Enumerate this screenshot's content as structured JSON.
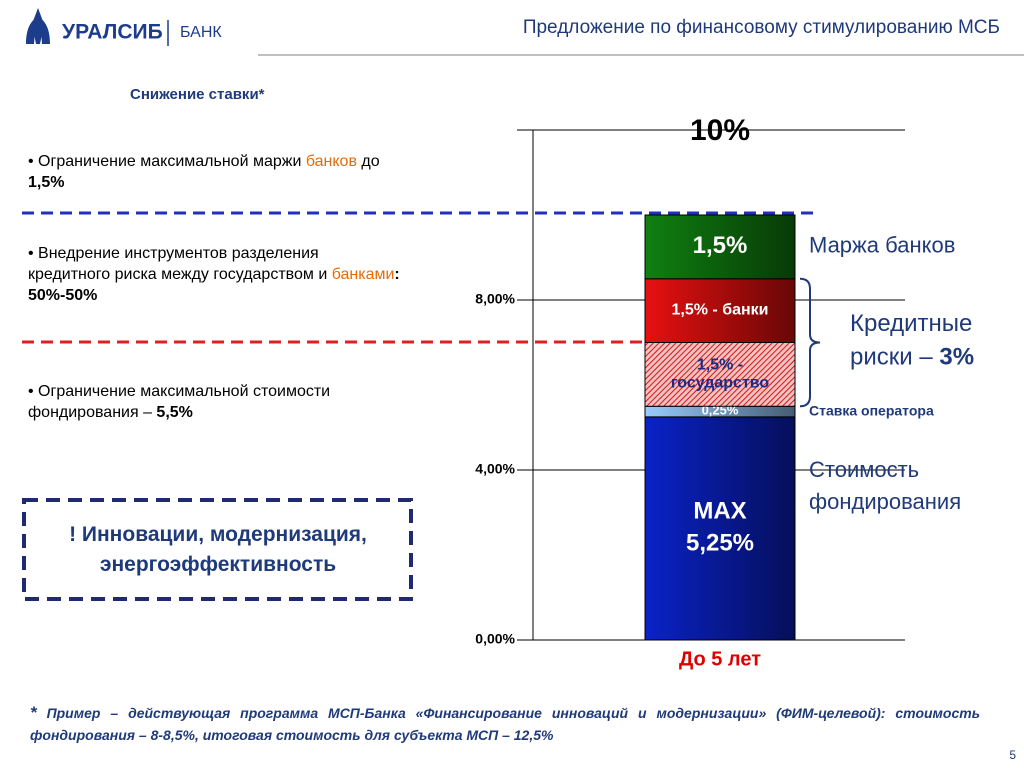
{
  "header": {
    "logo": "УРАЛСИБ",
    "logo_suffix": "БАНК",
    "title": "Предложение по финансовому стимулированию  МСБ"
  },
  "subtitle": "Снижение ставки*",
  "bullets": [
    [
      "• Ограничение максимальной маржи ",
      "банков",
      " до ",
      "1,5%"
    ],
    [
      "• Внедрение инструментов разделения кредитного риска между государством и ",
      "банками",
      ": 50%-50%"
    ],
    [
      "• Ограничение максимальной стоимости фондирования – ",
      "5,5%"
    ]
  ],
  "highlight": "! Инновации, модернизация, энергоэффективность",
  "footnote": {
    "mark": "*",
    "text": "Пример – действующая программа МСП-Банка «Финансирование инноваций и модернизации» (ФИМ-целевой): стоимость фондирования – 8-8,5%, итоговая стоимость для субъекта МСП – 12,5%"
  },
  "page_number": "5",
  "chart_data": {
    "type": "stacked_bar",
    "categories": [
      "До 5 лет"
    ],
    "series": [
      {
        "name": "Стоимость фондирования",
        "color": "#0a22c8",
        "values": [
          5.25
        ],
        "value_labels": [
          "MAX\n5,25%"
        ]
      },
      {
        "name": "Ставка оператора",
        "color": "#99ccff",
        "values": [
          0.25
        ],
        "value_labels": [
          "0,25%"
        ]
      },
      {
        "color": "#e02020",
        "hatch": true,
        "values": [
          1.5
        ],
        "value_labels": [
          "1,5% -\nгосударство"
        ]
      },
      {
        "color": "#e81010",
        "values": [
          1.5
        ],
        "value_labels": [
          "1,5% - банки"
        ]
      },
      {
        "name": "Маржа банков",
        "color": "#108010",
        "values": [
          1.5
        ],
        "value_labels": [
          "1,5%"
        ]
      }
    ],
    "total": 10,
    "total_label": "10%",
    "risk_annotation": [
      "Кредитные",
      "риски – ",
      "3%"
    ],
    "ylim": [
      0,
      12
    ],
    "yticks": [
      {
        "value": 0,
        "label": "0,00%"
      },
      {
        "value": 4,
        "label": "4,00%"
      },
      {
        "value": 8,
        "label": "8,00%"
      }
    ],
    "grid": true
  }
}
